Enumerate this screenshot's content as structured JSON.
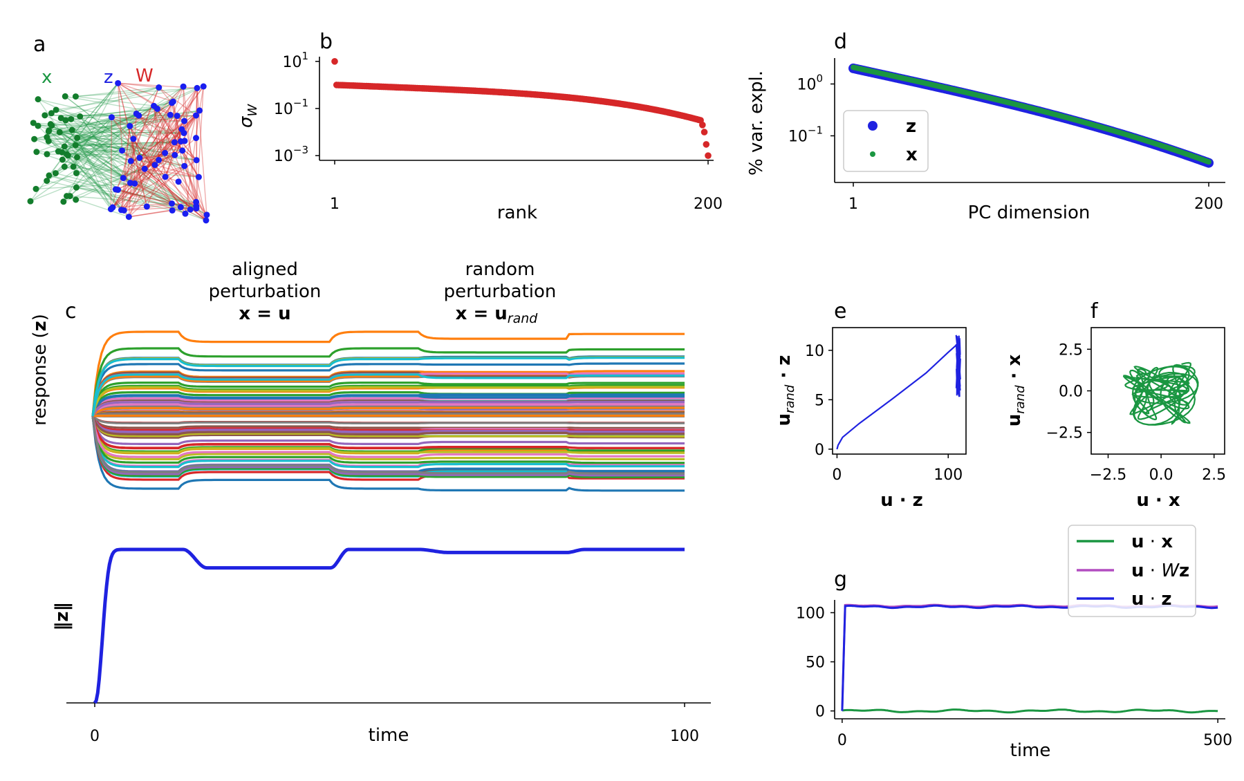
{
  "panel_labels": {
    "a": "a",
    "b": "b",
    "c": "c",
    "d": "d",
    "e": "e",
    "f": "f",
    "g": "g"
  },
  "network_labels": {
    "x": "x",
    "z": "z",
    "w": "W"
  },
  "colors": {
    "green": "#1a9641",
    "blue": "#1f22e0",
    "red": "#d62728",
    "magenta": "#b24cc0"
  },
  "chart_data": [
    {
      "id": "b",
      "type": "scatter",
      "title": "",
      "xlabel": "rank",
      "ylabel": "σ_W",
      "ylabel_main": "σ",
      "ylabel_sub": "W",
      "x_ticks": [
        "1",
        "200"
      ],
      "y_ticks": [
        {
          "base": "10",
          "exp": "1"
        },
        {
          "base": "10",
          "exp": "−1"
        },
        {
          "base": "10",
          "exp": "−3"
        }
      ],
      "ylim_log10": [
        -3.2,
        1.2
      ],
      "n_points": 200,
      "first_value": 10,
      "second_value": 1.0,
      "near_end_values": [
        0.02,
        0.01,
        0.003,
        0.001
      ]
    },
    {
      "id": "d",
      "type": "scatter",
      "title": "",
      "xlabel": "PC dimension",
      "ylabel": "% var. expl.",
      "x_ticks": [
        "1",
        "200"
      ],
      "y_ticks": [
        {
          "base": "10",
          "exp": "0"
        },
        {
          "base": "10",
          "exp": "−1"
        }
      ],
      "ylim_log10": [
        -1.9,
        0.5
      ],
      "n_points": 200,
      "start_value": 2.0,
      "end_value": 0.03,
      "legend": [
        {
          "label": "z",
          "color": "#1f22e0"
        },
        {
          "label": "x",
          "color": "#1a9641"
        }
      ]
    },
    {
      "id": "c_top",
      "type": "line",
      "title": "",
      "ylabel_prefix": "response (",
      "ylabel_bold": "z",
      "ylabel_suffix": ")",
      "n_series": 80,
      "annotations": [
        {
          "line1": "aligned",
          "line2": "perturbation",
          "line3_main": "x = u",
          "line3_sub": ""
        },
        {
          "line1": "random",
          "line2": "perturbation",
          "line3_main": "x = u",
          "line3_sub": "rand"
        }
      ],
      "phase_boundaries": [
        0,
        29,
        80,
        110,
        160,
        200
      ],
      "phase_gains": [
        1.0,
        0.88,
        1.0,
        0.97,
        1.0
      ]
    },
    {
      "id": "c_bottom",
      "type": "line",
      "title": "",
      "xlabel": "time",
      "ylabel": "‖z‖",
      "x_ticks": [
        "0",
        "100"
      ],
      "xlim": [
        0,
        100
      ],
      "approx_levels": [
        {
          "t": 0,
          "v": 0
        },
        {
          "t": 5,
          "v": 1.0
        },
        {
          "t": 15,
          "v": 1.0
        },
        {
          "t": 19,
          "v": 0.88
        },
        {
          "t": 40,
          "v": 0.88
        },
        {
          "t": 43,
          "v": 1.0
        },
        {
          "t": 55,
          "v": 1.0
        },
        {
          "t": 60,
          "v": 0.98
        },
        {
          "t": 80,
          "v": 0.98
        },
        {
          "t": 83,
          "v": 1.0
        },
        {
          "t": 100,
          "v": 1.0
        }
      ]
    },
    {
      "id": "e",
      "type": "line",
      "title": "",
      "xlabel": "u · z",
      "ylabel": "u_rand · z",
      "x_ticks": [
        "0",
        "100"
      ],
      "y_ticks": [
        "0",
        "5",
        "10"
      ],
      "xlim": [
        -4,
        116
      ],
      "ylim": [
        -0.5,
        12.3
      ],
      "points": [
        [
          0,
          0
        ],
        [
          1,
          0.4
        ],
        [
          5,
          1.2
        ],
        [
          20,
          2.6
        ],
        [
          50,
          5.1
        ],
        [
          80,
          7.7
        ],
        [
          100,
          9.8
        ],
        [
          108,
          10.6
        ]
      ],
      "scatter_cluster": {
        "x_range": [
          107,
          111
        ],
        "y_range": [
          5.3,
          11.8
        ]
      }
    },
    {
      "id": "f",
      "type": "line",
      "title": "",
      "xlabel": "u · x",
      "ylabel": "u_rand · x",
      "x_ticks": [
        "−2.5",
        "0.0",
        "2.5"
      ],
      "y_ticks": [
        "−2.5",
        "0.0",
        "2.5"
      ],
      "xlim": [
        -3.3,
        3.0
      ],
      "ylim": [
        -3.8,
        3.8
      ],
      "trajectory": {
        "amplitude": 1.3,
        "spread": [
          -2.5,
          2.5
        ]
      }
    },
    {
      "id": "g",
      "type": "line",
      "title": "",
      "xlabel": "time",
      "x_ticks": [
        "0",
        "500"
      ],
      "y_ticks": [
        "0",
        "50",
        "100"
      ],
      "xlim": [
        -10,
        510
      ],
      "ylim": [
        -8,
        113
      ],
      "series": [
        {
          "name": "u · x",
          "color": "#1a9641",
          "level": 0
        },
        {
          "name": "u · Wz",
          "color": "#b24cc0",
          "level": 107
        },
        {
          "name": "u · z",
          "color": "#1f22e0",
          "level": 106
        }
      ],
      "legend": [
        {
          "main": "u · x",
          "main_bold": "u",
          "op": " · ",
          "var": "x",
          "color": "#1a9641"
        },
        {
          "main": "u · Wz",
          "main_bold": "u",
          "op": " · ",
          "var_italic": "W",
          "var": "z",
          "color": "#b24cc0"
        },
        {
          "main": "u · z",
          "main_bold": "u",
          "op": " · ",
          "var": "z",
          "color": "#1f22e0"
        }
      ]
    }
  ]
}
